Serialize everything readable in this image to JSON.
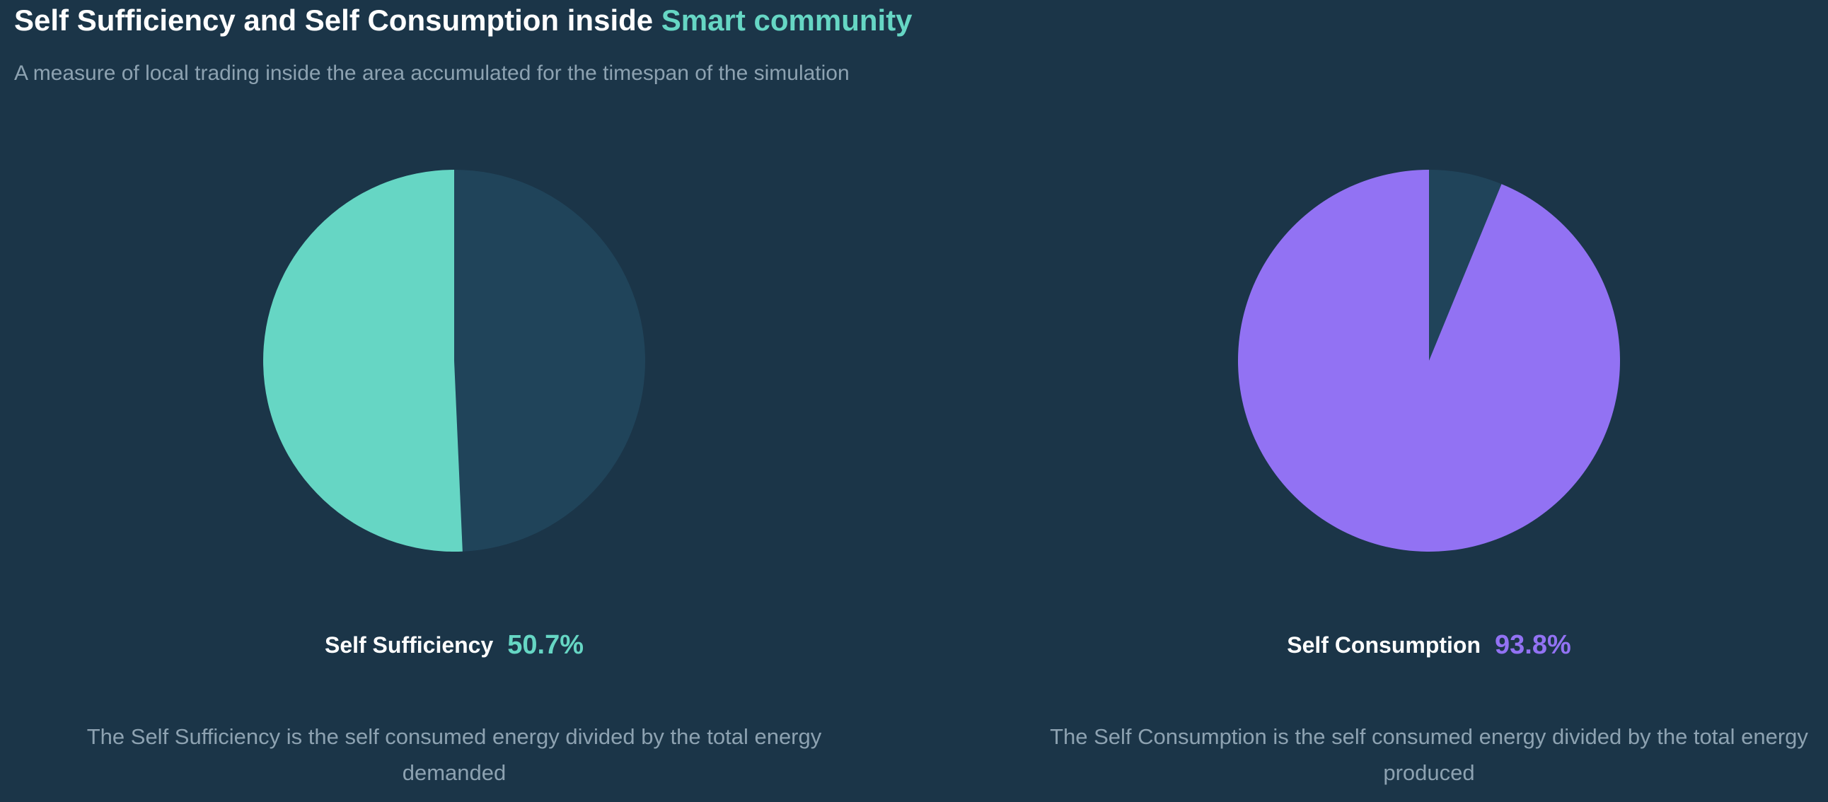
{
  "header": {
    "title_prefix": "Self Sufficiency and Self Consumption inside ",
    "title_accent": "Smart community",
    "subtitle": "A measure of local trading inside the area accumulated for the timespan of the simulation"
  },
  "colors": {
    "background": "#1b3548",
    "pie_remainder": "#20445a",
    "self_sufficiency": "#66d6c4",
    "self_consumption": "#9272f3",
    "muted_text": "#8da2b1"
  },
  "chart_data": [
    {
      "type": "pie",
      "title": "Self Sufficiency",
      "value_percent": 50.7,
      "slices": [
        {
          "label": "Self Sufficiency",
          "value": 50.7,
          "color": "#66d6c4"
        },
        {
          "label": "",
          "value": 49.3,
          "color": "#20445a"
        }
      ]
    },
    {
      "type": "pie",
      "title": "Self Consumption",
      "value_percent": 93.8,
      "slices": [
        {
          "label": "Self Consumption",
          "value": 93.8,
          "color": "#9272f3"
        },
        {
          "label": "",
          "value": 6.2,
          "color": "#20445a"
        }
      ]
    }
  ],
  "panels": [
    {
      "label": "Self Sufficiency",
      "value_text": "50.7%",
      "description": "The Self Sufficiency is the self consumed energy divided by the total energy demanded"
    },
    {
      "label": "Self Consumption",
      "value_text": "93.8%",
      "description": "The Self Consumption is the self consumed energy divided by the total energy produced"
    }
  ]
}
